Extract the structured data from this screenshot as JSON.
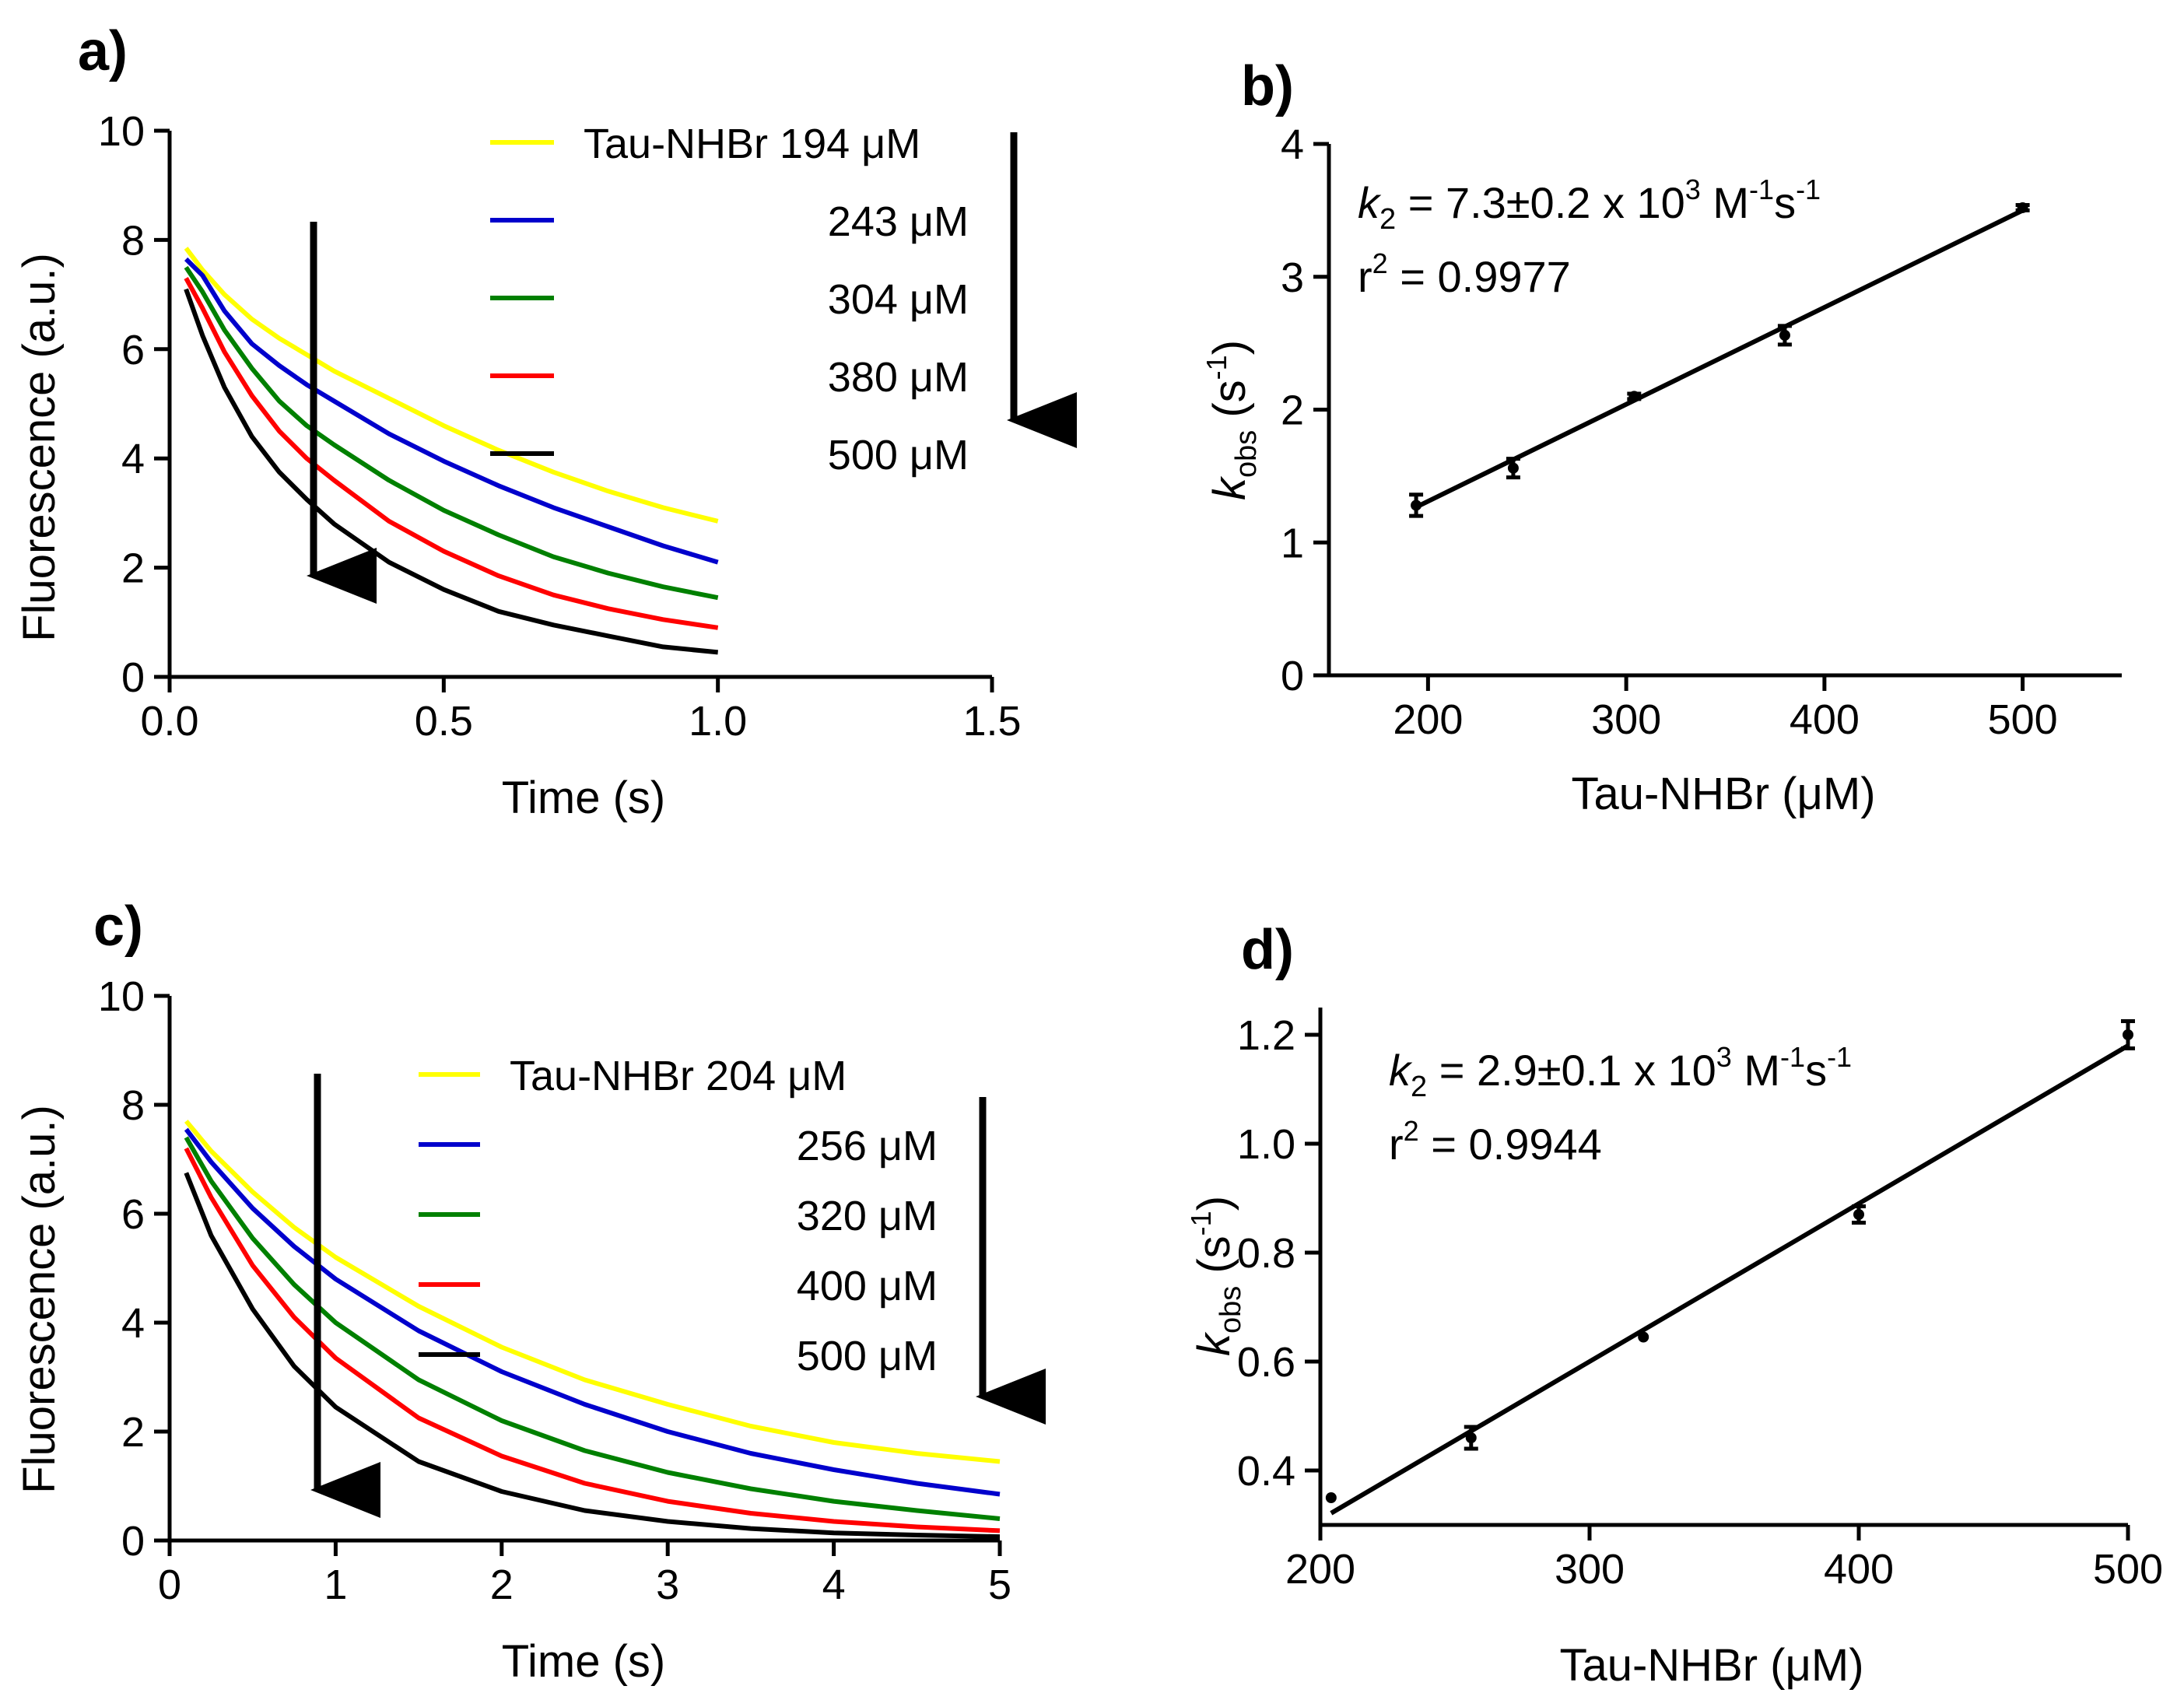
{
  "figure": {
    "panel_labels": [
      "a)",
      "b)",
      "c)",
      "d)"
    ]
  },
  "chart_data": [
    {
      "id": "a",
      "type": "line",
      "title": "",
      "xlabel": "Time (s)",
      "ylabel": "Fluorescence (a.u.)",
      "xlim": [
        0,
        1.5
      ],
      "ylim": [
        0,
        10
      ],
      "xticks": [
        0.0,
        0.5,
        1.0,
        1.5
      ],
      "xtick_labels": [
        "0.0",
        "0.5",
        "1.0",
        "1.5"
      ],
      "yticks": [
        0,
        2,
        4,
        6,
        8,
        10
      ],
      "ytick_labels": [
        "0",
        "2",
        "4",
        "6",
        "8",
        "10"
      ],
      "legend_entries": [
        "Tau-NHBr 194 μM",
        "243  μM",
        "304  μM",
        "380  μM",
        "500  μM"
      ],
      "legend_position": "top-right",
      "series": [
        {
          "name": "Tau-NHBr 194 μM",
          "color": "#ffff00",
          "x": [
            0.03,
            0.06,
            0.1,
            0.15,
            0.2,
            0.25,
            0.3,
            0.4,
            0.5,
            0.6,
            0.7,
            0.8,
            0.9,
            1.0
          ],
          "values": [
            7.85,
            7.45,
            7.0,
            6.55,
            6.2,
            5.9,
            5.6,
            5.1,
            4.6,
            4.15,
            3.75,
            3.4,
            3.1,
            2.85
          ]
        },
        {
          "name": "243  μM",
          "color": "#0000cc",
          "x": [
            0.03,
            0.06,
            0.1,
            0.15,
            0.2,
            0.25,
            0.3,
            0.4,
            0.5,
            0.6,
            0.7,
            0.8,
            0.9,
            1.0
          ],
          "values": [
            7.65,
            7.35,
            6.7,
            6.1,
            5.7,
            5.35,
            5.05,
            4.45,
            3.95,
            3.5,
            3.1,
            2.75,
            2.4,
            2.1
          ]
        },
        {
          "name": "304  μM",
          "color": "#008000",
          "x": [
            0.03,
            0.06,
            0.1,
            0.15,
            0.2,
            0.25,
            0.3,
            0.4,
            0.5,
            0.6,
            0.7,
            0.8,
            0.9,
            1.0
          ],
          "values": [
            7.5,
            7.05,
            6.35,
            5.65,
            5.05,
            4.6,
            4.25,
            3.6,
            3.05,
            2.6,
            2.2,
            1.9,
            1.65,
            1.45
          ]
        },
        {
          "name": "380  μM",
          "color": "#ff0000",
          "x": [
            0.03,
            0.06,
            0.1,
            0.15,
            0.2,
            0.25,
            0.3,
            0.4,
            0.5,
            0.6,
            0.7,
            0.8,
            0.9,
            1.0
          ],
          "values": [
            7.3,
            6.75,
            5.95,
            5.15,
            4.5,
            4.0,
            3.6,
            2.85,
            2.3,
            1.85,
            1.5,
            1.25,
            1.05,
            0.9
          ]
        },
        {
          "name": "500  μM",
          "color": "#000000",
          "x": [
            0.03,
            0.06,
            0.1,
            0.15,
            0.2,
            0.25,
            0.3,
            0.4,
            0.5,
            0.6,
            0.7,
            0.8,
            0.9,
            1.0
          ],
          "values": [
            7.1,
            6.25,
            5.3,
            4.4,
            3.75,
            3.25,
            2.8,
            2.1,
            1.6,
            1.2,
            0.95,
            0.75,
            0.55,
            0.45
          ]
        }
      ],
      "arrows": [
        "downward arrow across curves",
        "downward arrow beside legend"
      ]
    },
    {
      "id": "b",
      "type": "scatter",
      "title": "",
      "xlabel_parts": [
        "Tau-NHBr (",
        "μ",
        "M)"
      ],
      "ylabel_parts": [
        "k",
        "obs",
        " (s",
        "-1",
        ")"
      ],
      "xlim": [
        150,
        550
      ],
      "ylim": [
        0,
        4
      ],
      "xticks": [
        200,
        300,
        400,
        500
      ],
      "xtick_labels": [
        "200",
        "300",
        "400",
        "500"
      ],
      "yticks": [
        0,
        1,
        2,
        3,
        4
      ],
      "ytick_labels": [
        "0",
        "1",
        "2",
        "3",
        "4"
      ],
      "x": [
        194,
        243,
        304,
        380,
        500
      ],
      "values": [
        1.28,
        1.56,
        2.1,
        2.56,
        3.52
      ],
      "errors": [
        0.08,
        0.07,
        0.02,
        0.07,
        0.02
      ],
      "fit": {
        "slope": 0.0073,
        "intercept": -0.15,
        "x_range": [
          194,
          500
        ]
      },
      "annotation_k2_parts": [
        "k",
        "2",
        " = 7.3±0.2 x 10",
        "3",
        " M",
        "-1",
        "s",
        "-1"
      ],
      "annotation_r2_parts": [
        "r",
        "2",
        " = 0.9977"
      ]
    },
    {
      "id": "c",
      "type": "line",
      "title": "",
      "xlabel": "Time (s)",
      "ylabel": "Fluorescence (a.u.)",
      "xlim": [
        0,
        5
      ],
      "ylim": [
        0,
        10
      ],
      "xticks": [
        0,
        1,
        2,
        3,
        4,
        5
      ],
      "xtick_labels": [
        "0",
        "1",
        "2",
        "3",
        "4",
        "5"
      ],
      "yticks": [
        0,
        2,
        4,
        6,
        8,
        10
      ],
      "ytick_labels": [
        "0",
        "2",
        "4",
        "6",
        "8",
        "10"
      ],
      "legend_entries": [
        "Tau-NHBr 204 μM",
        "256  μM",
        "320  μM",
        "400  μM",
        "500  μM"
      ],
      "legend_position": "top-right",
      "series": [
        {
          "name": "Tau-NHBr 204 μM",
          "color": "#ffff00",
          "x": [
            0.1,
            0.25,
            0.5,
            0.75,
            1.0,
            1.5,
            2.0,
            2.5,
            3.0,
            3.5,
            4.0,
            4.5,
            5.0
          ],
          "values": [
            7.7,
            7.15,
            6.4,
            5.75,
            5.2,
            4.3,
            3.55,
            2.95,
            2.5,
            2.1,
            1.8,
            1.6,
            1.45
          ]
        },
        {
          "name": "256  μM",
          "color": "#0000cc",
          "x": [
            0.1,
            0.25,
            0.5,
            0.75,
            1.0,
            1.5,
            2.0,
            2.5,
            3.0,
            3.5,
            4.0,
            4.5,
            5.0
          ],
          "values": [
            7.55,
            6.95,
            6.1,
            5.4,
            4.8,
            3.85,
            3.1,
            2.5,
            2.0,
            1.6,
            1.3,
            1.05,
            0.85
          ]
        },
        {
          "name": "320  μM",
          "color": "#008000",
          "x": [
            0.1,
            0.25,
            0.5,
            0.75,
            1.0,
            1.5,
            2.0,
            2.5,
            3.0,
            3.5,
            4.0,
            4.5,
            5.0
          ],
          "values": [
            7.4,
            6.6,
            5.55,
            4.7,
            4.0,
            2.95,
            2.2,
            1.65,
            1.25,
            0.95,
            0.72,
            0.55,
            0.4
          ]
        },
        {
          "name": "400  μM",
          "color": "#ff0000",
          "x": [
            0.1,
            0.25,
            0.5,
            0.75,
            1.0,
            1.5,
            2.0,
            2.5,
            3.0,
            3.5,
            4.0,
            4.5,
            5.0
          ],
          "values": [
            7.2,
            6.3,
            5.05,
            4.1,
            3.35,
            2.25,
            1.55,
            1.05,
            0.72,
            0.5,
            0.35,
            0.25,
            0.18
          ]
        },
        {
          "name": "500  μM",
          "color": "#000000",
          "x": [
            0.1,
            0.25,
            0.5,
            0.75,
            1.0,
            1.5,
            2.0,
            2.5,
            3.0,
            3.5,
            4.0,
            4.5,
            5.0
          ],
          "values": [
            6.75,
            5.6,
            4.25,
            3.2,
            2.45,
            1.45,
            0.9,
            0.55,
            0.35,
            0.22,
            0.14,
            0.1,
            0.07
          ]
        }
      ],
      "arrows": [
        "downward arrow across curves",
        "downward arrow beside legend"
      ]
    },
    {
      "id": "d",
      "type": "scatter",
      "title": "",
      "xlabel_parts": [
        "Tau-NHBr (",
        "μ",
        "M)"
      ],
      "ylabel_parts": [
        "k",
        "obs",
        " (s",
        "-1",
        ")"
      ],
      "xlim": [
        200,
        500
      ],
      "ylim": [
        0.3,
        1.25
      ],
      "xticks": [
        200,
        300,
        400,
        500
      ],
      "xtick_labels": [
        "200",
        "300",
        "400",
        "500"
      ],
      "yticks": [
        0.4,
        0.6,
        0.8,
        1.0,
        1.2
      ],
      "ytick_labels": [
        "0.4",
        "0.6",
        "0.8",
        "1.0",
        "1.2"
      ],
      "x": [
        204,
        256,
        320,
        400,
        500
      ],
      "values": [
        0.35,
        0.46,
        0.645,
        0.87,
        1.2
      ],
      "errors": [
        0.0,
        0.02,
        0.0,
        0.015,
        0.025
      ],
      "fit": {
        "slope": 0.0029,
        "intercept": -0.27,
        "x_range": [
          204,
          500
        ]
      },
      "annotation_k2_parts": [
        "k",
        "2",
        " = 2.9±0.1 x 10",
        "3",
        " M",
        "-1",
        "s",
        "-1"
      ],
      "annotation_r2_parts": [
        "r",
        "2",
        " = 0.9944"
      ]
    }
  ]
}
